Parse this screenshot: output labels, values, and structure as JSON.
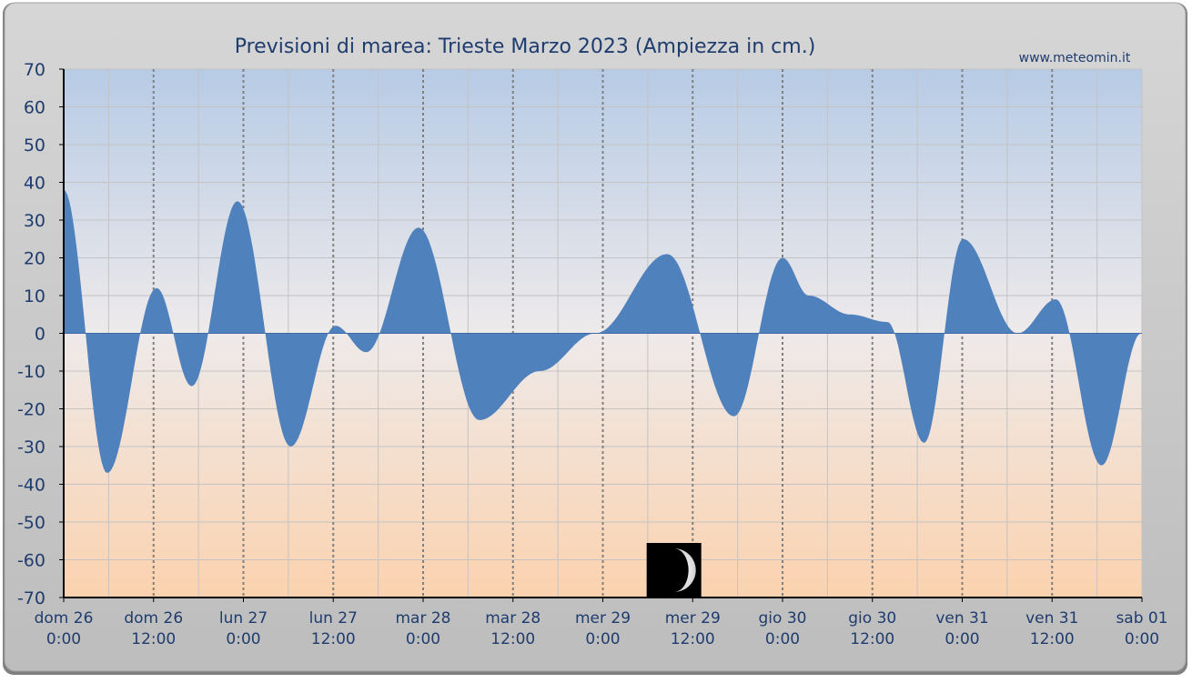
{
  "chart_data": {
    "type": "area",
    "title": "Previsioni di marea: Trieste Marzo 2023 (Ampiezza in cm.)",
    "watermark": "www.meteomin.it",
    "ylim": [
      -70,
      70
    ],
    "yticks": [
      70,
      60,
      50,
      40,
      30,
      20,
      10,
      0,
      -10,
      -20,
      -30,
      -40,
      -50,
      -60,
      -70
    ],
    "grid": true,
    "x_ticks": [
      {
        "day": "dom",
        "date": "26",
        "time": "0:00"
      },
      {
        "day": "dom",
        "date": "26",
        "time": "12:00"
      },
      {
        "day": "lun",
        "date": "27",
        "time": "0:00"
      },
      {
        "day": "lun",
        "date": "27",
        "time": "12:00"
      },
      {
        "day": "mar",
        "date": "28",
        "time": "0:00"
      },
      {
        "day": "mar",
        "date": "28",
        "time": "12:00"
      },
      {
        "day": "mer",
        "date": "29",
        "time": "0:00"
      },
      {
        "day": "mer",
        "date": "29",
        "time": "12:00"
      },
      {
        "day": "gio",
        "date": "30",
        "time": "0:00"
      },
      {
        "day": "gio",
        "date": "30",
        "time": "12:00"
      },
      {
        "day": "ven",
        "date": "31",
        "time": "0:00"
      },
      {
        "day": "ven",
        "date": "31",
        "time": "12:00"
      },
      {
        "day": "sab",
        "date": "01",
        "time": "0:00"
      }
    ],
    "series": [
      {
        "x_hours": [
          0,
          5.8,
          12.4,
          17.1,
          23.2,
          30.3,
          36.3,
          40.4,
          47.4,
          55.5,
          63.6,
          71.0,
          80.6,
          89.5,
          96.0,
          99.5,
          105.0,
          110.0,
          114.9,
          120.1,
          127.4,
          132.5,
          138.6,
          143.9
        ],
        "values": [
          38,
          -37,
          12,
          -14,
          35,
          -30,
          2,
          -5,
          28,
          -23,
          -10,
          0,
          21,
          -22,
          20,
          10,
          5,
          3,
          -29,
          25,
          0,
          9,
          -35,
          0
        ],
        "color": "#4f81bd"
      }
    ],
    "moon_phase": {
      "icon": "waxing-crescent-moon-icon",
      "x_hours": 81.5
    }
  }
}
